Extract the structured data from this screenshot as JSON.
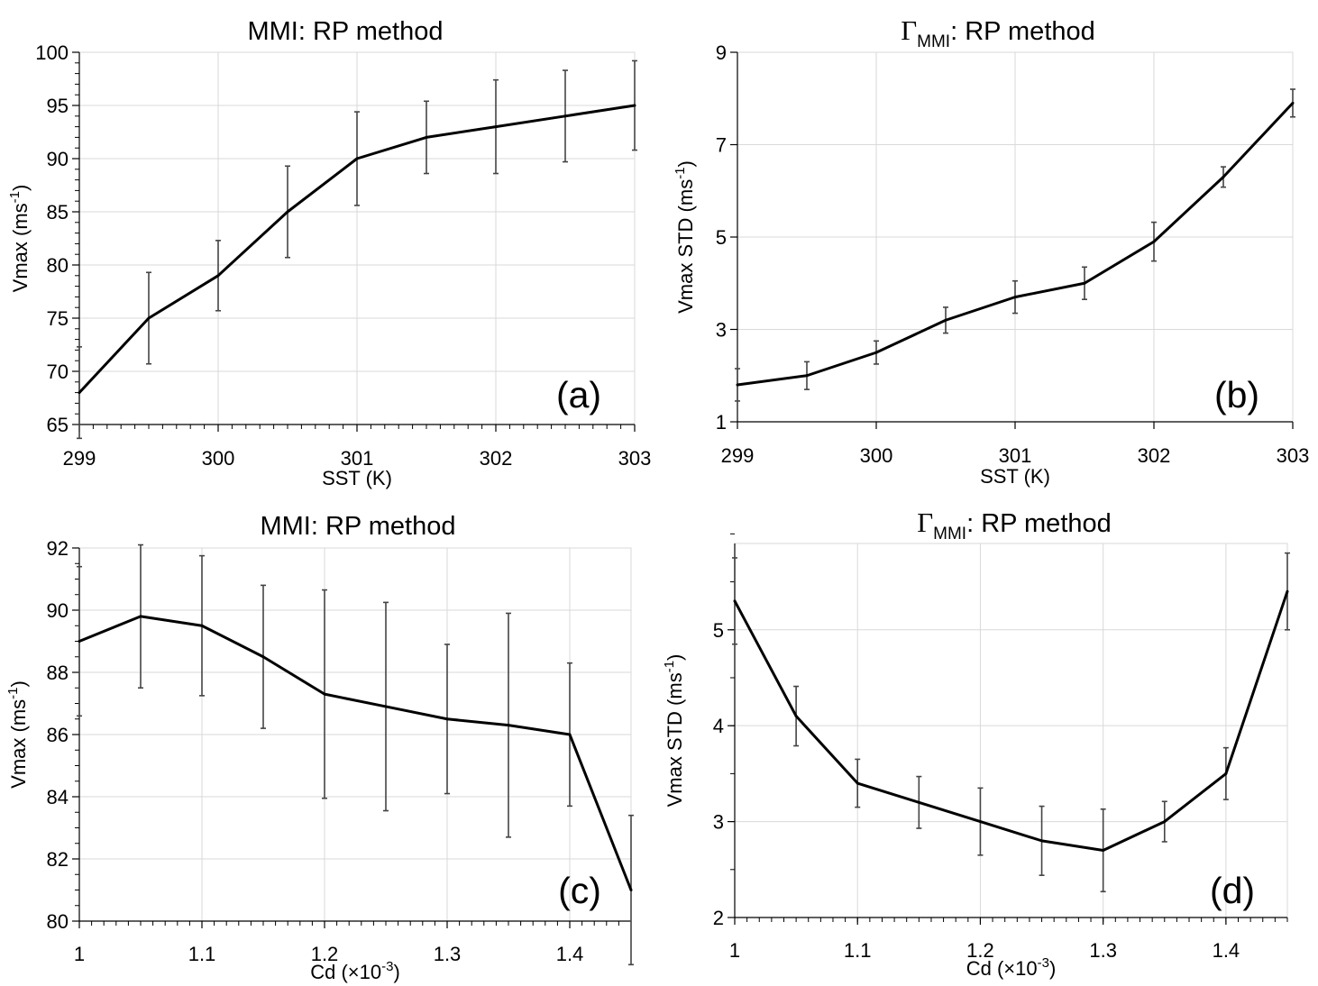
{
  "chart_data": [
    {
      "id": "a",
      "type": "line",
      "title": "MMI: RP method",
      "title_gamma": false,
      "xlabel": "SST (K)",
      "xlabel_sup": "",
      "xlabel_tail": "",
      "ylabel": "Vmax (ms",
      "ylabel_sup": "-1",
      "ylabel_tail": ")",
      "panel_label": "(a)",
      "xlim": [
        299,
        303
      ],
      "ylim": [
        65,
        100
      ],
      "xticks": [
        299,
        300,
        301,
        302,
        303
      ],
      "xtick_labels": [
        "299",
        "300",
        "301",
        "302",
        "303"
      ],
      "yticks": [
        65,
        70,
        75,
        80,
        85,
        90,
        95,
        100
      ],
      "ytick_labels": [
        "65",
        "70",
        "75",
        "80",
        "85",
        "90",
        "95",
        "100"
      ],
      "x_minor": 0.1,
      "y_minor": 1,
      "grid": true,
      "x": [
        299,
        299.5,
        300,
        300.5,
        301,
        301.5,
        302,
        302.5,
        303
      ],
      "y": [
        68,
        75,
        79,
        85,
        90,
        92,
        93,
        94,
        95
      ],
      "yerr": [
        4.3,
        4.3,
        3.3,
        4.3,
        4.4,
        3.4,
        4.4,
        4.3,
        4.2
      ]
    },
    {
      "id": "b",
      "type": "line",
      "title": ": RP method",
      "title_gamma": true,
      "gamma_symbol": "Γ",
      "gamma_sub": "MMI",
      "xlabel": "SST (K)",
      "xlabel_sup": "",
      "xlabel_tail": "",
      "ylabel": "Vmax STD (ms",
      "ylabel_sup": "-1",
      "ylabel_tail": ")",
      "panel_label": "(b)",
      "xlim": [
        299,
        303
      ],
      "ylim": [
        1,
        9
      ],
      "xticks": [
        299,
        300,
        301,
        302,
        303
      ],
      "xtick_labels": [
        "299",
        "300",
        "301",
        "302",
        "303"
      ],
      "yticks": [
        1,
        3,
        5,
        7,
        9
      ],
      "ytick_labels": [
        "1",
        "3",
        "5",
        "7",
        "9"
      ],
      "x_minor": 0,
      "y_minor": 0,
      "grid": true,
      "x": [
        299,
        299.5,
        300,
        300.5,
        301,
        301.5,
        302,
        302.5,
        303
      ],
      "y": [
        1.8,
        2.0,
        2.5,
        3.2,
        3.7,
        4.0,
        4.9,
        6.3,
        7.9
      ],
      "yerr": [
        0.35,
        0.3,
        0.25,
        0.28,
        0.35,
        0.35,
        0.42,
        0.22,
        0.3
      ]
    },
    {
      "id": "c",
      "type": "line",
      "title": "MMI: RP method",
      "title_gamma": false,
      "xlabel": "Cd (×10",
      "xlabel_sup": "-3",
      "xlabel_tail": ")",
      "ylabel": "Vmax (ms",
      "ylabel_sup": "-1",
      "ylabel_tail": ")",
      "panel_label": "(c)",
      "xlim": [
        1,
        1.45
      ],
      "ylim": [
        80,
        92
      ],
      "xticks": [
        1,
        1.1,
        1.2,
        1.3,
        1.4
      ],
      "xtick_labels": [
        "1",
        "1.1",
        "1.2",
        "1.3",
        "1.4"
      ],
      "yticks": [
        80,
        82,
        84,
        86,
        88,
        90,
        92
      ],
      "ytick_labels": [
        "80",
        "82",
        "84",
        "86",
        "88",
        "90",
        "92"
      ],
      "x_minor": 0.01,
      "y_minor": 0.5,
      "grid": true,
      "x": [
        1,
        1.05,
        1.1,
        1.15,
        1.2,
        1.25,
        1.3,
        1.35,
        1.4,
        1.45
      ],
      "y": [
        89,
        89.8,
        89.5,
        88.5,
        87.3,
        86.9,
        86.5,
        86.3,
        86,
        81
      ],
      "yerr": [
        2.4,
        2.3,
        2.25,
        2.3,
        3.35,
        3.35,
        2.4,
        3.6,
        2.3,
        2.4
      ]
    },
    {
      "id": "d",
      "type": "line",
      "title": ": RP method",
      "title_gamma": true,
      "gamma_symbol": "Γ",
      "gamma_sub": "MMI",
      "xlabel": "Cd (×10",
      "xlabel_sup": "-3",
      "xlabel_tail": ")",
      "ylabel": "Vmax STD (ms",
      "ylabel_sup": "-1",
      "ylabel_tail": ")",
      "panel_label": "(d)",
      "xlim": [
        1,
        1.45
      ],
      "ylim": [
        2,
        5.9
      ],
      "xticks": [
        1,
        1.1,
        1.2,
        1.3,
        1.4
      ],
      "xtick_labels": [
        "1",
        "1.1",
        "1.2",
        "1.3",
        "1.4"
      ],
      "yticks": [
        2,
        3,
        4,
        5
      ],
      "ytick_labels": [
        "2",
        "3",
        "4",
        "5"
      ],
      "x_minor": 0.01,
      "y_minor": 0.5,
      "grid": true,
      "x": [
        1,
        1.05,
        1.1,
        1.15,
        1.2,
        1.25,
        1.3,
        1.35,
        1.4,
        1.45
      ],
      "y": [
        5.3,
        4.1,
        3.4,
        3.2,
        3.0,
        2.8,
        2.7,
        3.0,
        3.5,
        5.4
      ],
      "yerr": [
        0.45,
        0.31,
        0.25,
        0.27,
        0.35,
        0.36,
        0.43,
        0.21,
        0.27,
        0.4
      ]
    }
  ]
}
